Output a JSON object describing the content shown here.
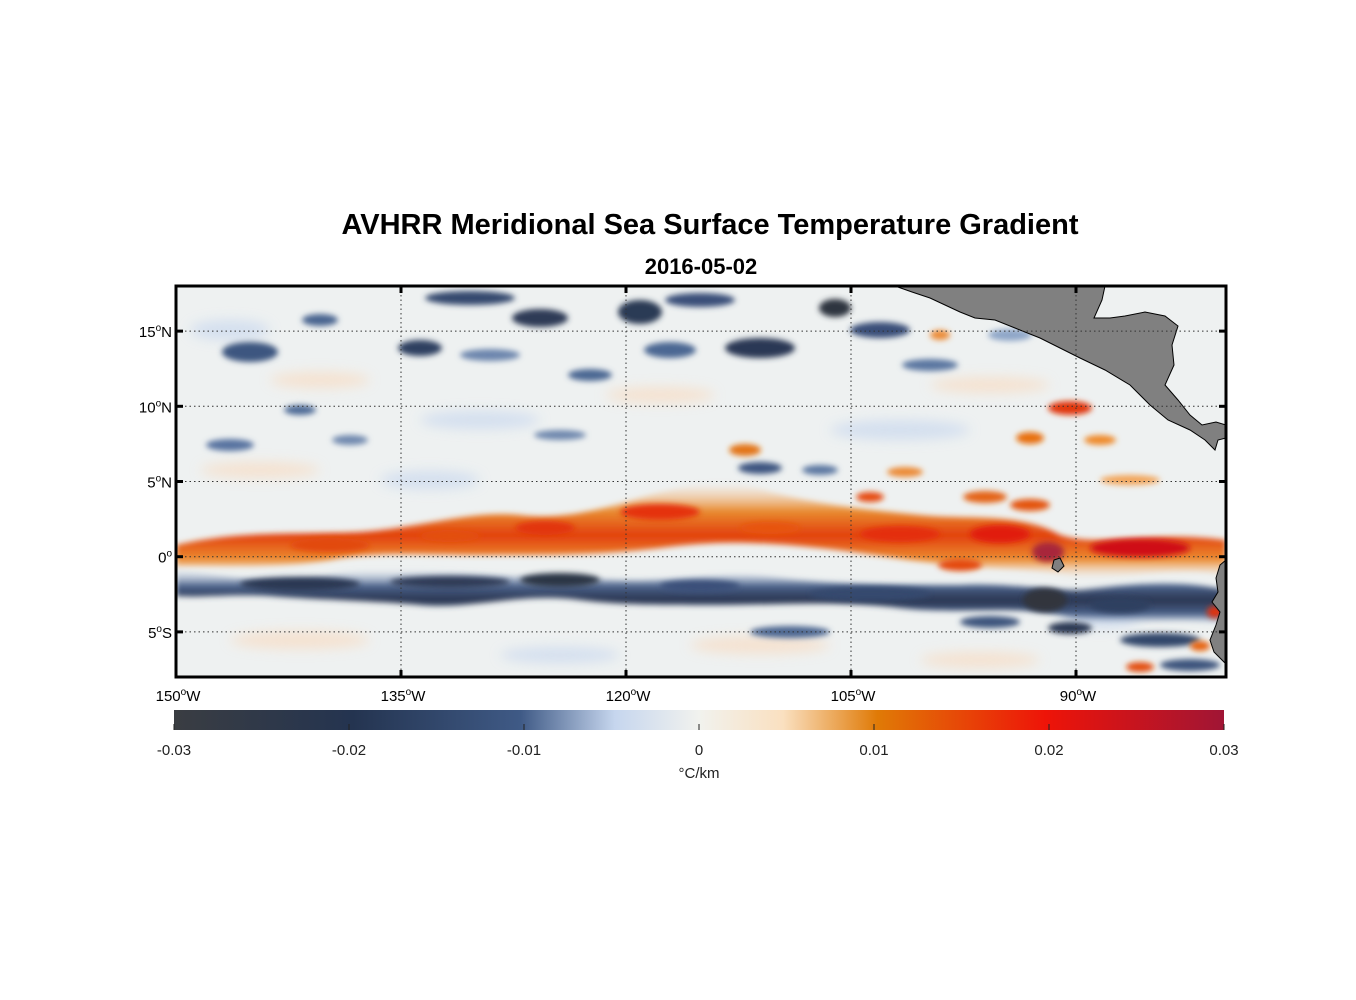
{
  "title": "AVHRR Meridional Sea Surface Temperature Gradient",
  "subtitle": "2016-05-02",
  "colors": {
    "land": "#808080",
    "frame": "#000000",
    "grid": "#333333",
    "neg_strong": "#3a3f47",
    "neg_mid": "#253a5e",
    "neg_light": "#c8d8ee",
    "zero": "#eef0ee",
    "pos_light": "#fbe3c6",
    "pos_mid": "#e36c00",
    "pos_strong": "#e00d10",
    "pos_max": "#a11432"
  },
  "map": {
    "lon_range": [
      -150,
      -80
    ],
    "lat_range": [
      -8,
      18
    ],
    "lon_ticks": [
      {
        "value": -150,
        "num": "150",
        "hemi": "W"
      },
      {
        "value": -135,
        "num": "135",
        "hemi": "W"
      },
      {
        "value": -120,
        "num": "120",
        "hemi": "W"
      },
      {
        "value": -105,
        "num": "105",
        "hemi": "W"
      },
      {
        "value": -90,
        "num": "90",
        "hemi": "W"
      }
    ],
    "lat_ticks": [
      {
        "value": 15,
        "num": "15",
        "hemi": "N"
      },
      {
        "value": 10,
        "num": "10",
        "hemi": "N"
      },
      {
        "value": 5,
        "num": "5",
        "hemi": "N"
      },
      {
        "value": 0,
        "num": "0",
        "hemi": ""
      },
      {
        "value": -5,
        "num": "5",
        "hemi": "S"
      }
    ],
    "degree_symbol": "o"
  },
  "chart_data": {
    "type": "heatmap",
    "title": "AVHRR Meridional Sea Surface Temperature Gradient",
    "subtitle": "2016-05-02",
    "variable": "meridional SST gradient",
    "units": "°C/km",
    "clim": [
      -0.03,
      0.03
    ],
    "features": [
      {
        "name": "equatorial front (positive band)",
        "lat_center": 1.5,
        "lon_range": [
          -150,
          -81
        ],
        "peak_value": 0.025
      },
      {
        "name": "south equatorial cold band (negative)",
        "lat_center": -1.5,
        "lon_range": [
          -150,
          -81
        ],
        "peak_value": -0.03
      },
      {
        "name": "northern eddy field",
        "lat_range": [
          10,
          18
        ],
        "lon_range": [
          -150,
          -95
        ],
        "typical_value": -0.02
      }
    ]
  },
  "colorbar": {
    "ticks": [
      {
        "value": -0.03,
        "label": "-0.03"
      },
      {
        "value": -0.02,
        "label": "-0.02"
      },
      {
        "value": -0.01,
        "label": "-0.01"
      },
      {
        "value": 0,
        "label": "0"
      },
      {
        "value": 0.01,
        "label": "0.01"
      },
      {
        "value": 0.02,
        "label": "0.02"
      },
      {
        "value": 0.03,
        "label": "0.03"
      }
    ],
    "units_label": "°C/km"
  }
}
